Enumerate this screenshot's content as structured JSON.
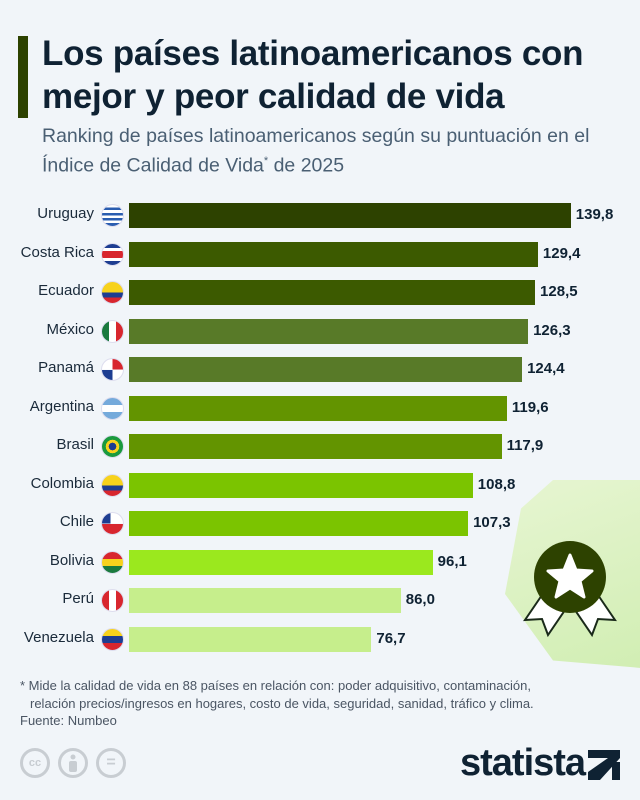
{
  "title": "Los países latinoamericanos con mejor y peor calidad de vida",
  "subtitle_a": "Ranking de países latinoamericanos según su puntuación en el Índice de Calidad de Vida",
  "subtitle_sup": "*",
  "subtitle_b": " de 2025",
  "chart_data": {
    "type": "bar",
    "orientation": "horizontal",
    "categories": [
      "Uruguay",
      "Costa Rica",
      "Ecuador",
      "México",
      "Panamá",
      "Argentina",
      "Brasil",
      "Colombia",
      "Chile",
      "Bolivia",
      "Perú",
      "Venezuela"
    ],
    "values": [
      139.8,
      129.4,
      128.5,
      126.3,
      124.4,
      119.6,
      117.9,
      108.8,
      107.3,
      96.1,
      86.0,
      76.7
    ],
    "labels": [
      "139,8",
      "129,4",
      "128,5",
      "126,3",
      "124,4",
      "119,6",
      "117,9",
      "108,8",
      "107,3",
      "96,1",
      "86,0",
      "76,7"
    ],
    "colors": [
      "#2d4200",
      "#3c5a00",
      "#3c5a00",
      "#587a28",
      "#587a28",
      "#639400",
      "#639400",
      "#7bc400",
      "#7bc400",
      "#9be81e",
      "#c6ee8c",
      "#c6ee8c"
    ],
    "xlim": [
      0,
      140
    ],
    "grid": false
  },
  "flags": [
    "uruguay-flag",
    "costa-rica-flag",
    "ecuador-flag",
    "mexico-flag",
    "panama-flag",
    "argentina-flag",
    "brazil-flag",
    "colombia-flag",
    "chile-flag",
    "bolivia-flag",
    "peru-flag",
    "venezuela-flag"
  ],
  "footnote": "* Mide la calidad de vida en 88 países en relación con: poder adquisitivo, contaminación, relación precios/ingresos en hogares, costo de vida, seguridad, sanidad, tráfico y clima.",
  "source": "Fuente: Numbeo",
  "license_icons": [
    "cc-icon",
    "attribution-icon",
    "no-derivatives-icon"
  ],
  "license_text": [
    "cc",
    "",
    "="
  ],
  "brand": "statista"
}
